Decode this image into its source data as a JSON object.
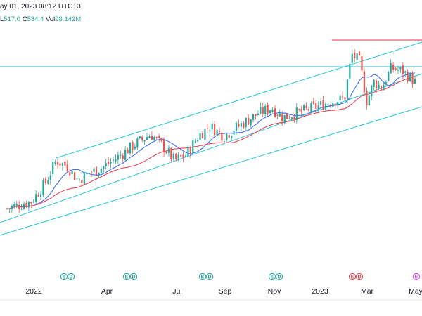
{
  "header": {
    "timestamp": "ay 01, 2023 08:12 UTC+3",
    "low_label": "L",
    "low_value": "517.0",
    "close_label": "C",
    "close_value": "534.4",
    "vol_label": "Vol",
    "vol_value": "98.142M"
  },
  "colors": {
    "up": "#26a69a",
    "down": "#ef5350",
    "ma_fast": "#2962ff",
    "ma_slow": "#f23645",
    "channel": "#26c6da",
    "resistance": "#f23645",
    "badge_past": "#26a69a",
    "badge_recent": "#f23645",
    "badge_upcoming": "#e040fb"
  },
  "badges": [
    {
      "letters": [
        "E",
        "D"
      ],
      "state": "past"
    },
    {
      "letters": [
        "E",
        "D"
      ],
      "state": "past"
    },
    {
      "letters": [
        "E",
        "D"
      ],
      "state": "past"
    },
    {
      "letters": [
        "E",
        "D"
      ],
      "state": "past"
    },
    {
      "letters": [
        "E",
        "D"
      ],
      "state": "recent"
    },
    {
      "letters": [
        "E"
      ],
      "state": "upcoming"
    }
  ],
  "chart_data": {
    "type": "candlestick",
    "x_tick_labels": [
      "2022",
      "Apr",
      "Jul",
      "Sep",
      "Nov",
      "2023",
      "Mar",
      "May"
    ],
    "indicators": [
      "moving average (fast)",
      "moving average (slow)",
      "ascending channel",
      "horizontal resistance line"
    ],
    "grid": false,
    "x": [
      "2021-12-01",
      "2022-01-01",
      "2022-01-20",
      "2022-02-01",
      "2022-02-15",
      "2022-03-01",
      "2022-03-15",
      "2022-04-01",
      "2022-04-15",
      "2022-05-01",
      "2022-05-15",
      "2022-06-01",
      "2022-06-15",
      "2022-07-01",
      "2022-07-15",
      "2022-08-01",
      "2022-08-15",
      "2022-09-01",
      "2022-09-15",
      "2022-10-01",
      "2022-10-15",
      "2022-11-01",
      "2022-11-15",
      "2022-12-01",
      "2022-12-15",
      "2023-01-01",
      "2023-01-15",
      "2023-02-01",
      "2023-02-10",
      "2023-02-20",
      "2023-03-01",
      "2023-03-10",
      "2023-03-20",
      "2023-04-01",
      "2023-04-15",
      "2023-05-01"
    ],
    "close": [
      305,
      318,
      355,
      392,
      382,
      356,
      370,
      380,
      393,
      410,
      425,
      440,
      420,
      392,
      402,
      438,
      455,
      436,
      450,
      465,
      478,
      488,
      470,
      478,
      484,
      492,
      500,
      505,
      585,
      572,
      500,
      535,
      525,
      560,
      555,
      534.4
    ]
  }
}
